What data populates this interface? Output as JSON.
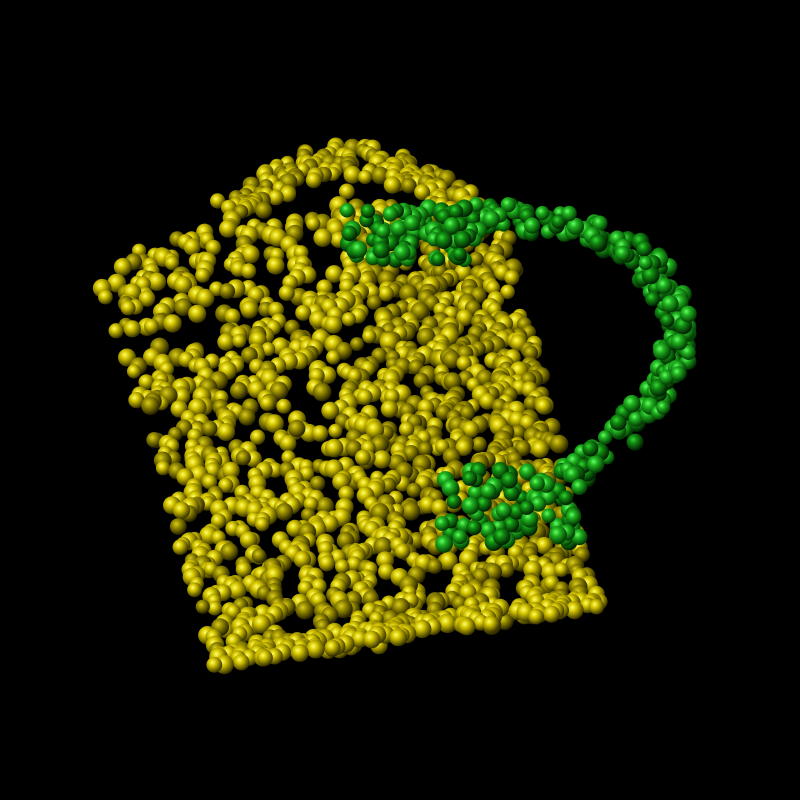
{
  "scene": {
    "subject": "mug point cloud",
    "background_color": "#000000",
    "segments": [
      {
        "name": "body",
        "color": "#d4c400",
        "highlight": "#ffff66",
        "shadow": "#3a3500"
      },
      {
        "name": "handle",
        "color": "#1fb21f",
        "highlight": "#66ff66",
        "shadow": "#033a03"
      }
    ]
  }
}
